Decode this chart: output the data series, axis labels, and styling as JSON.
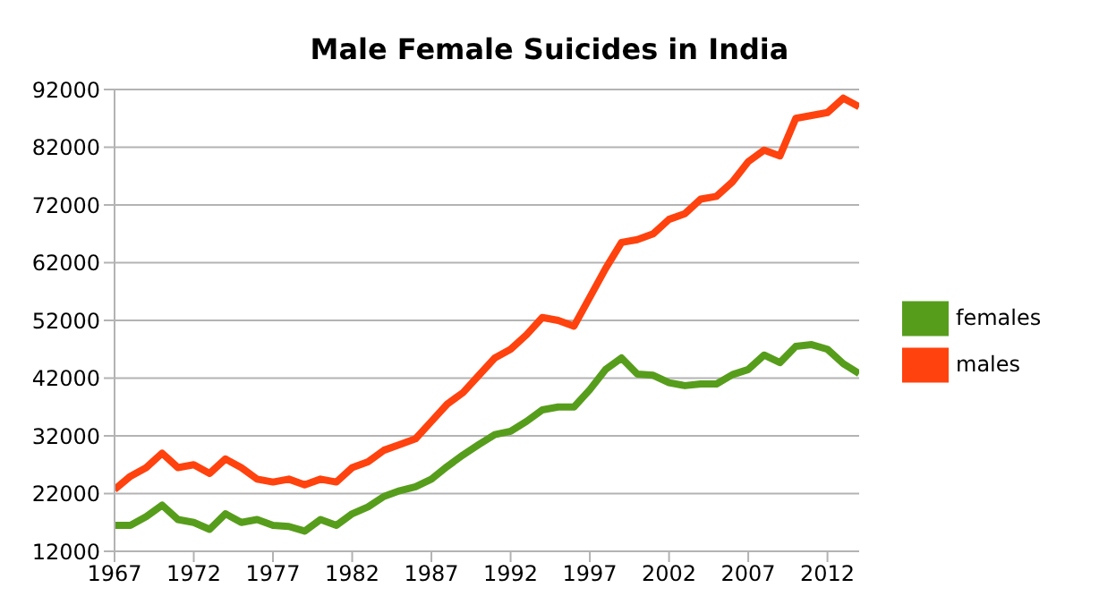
{
  "chart_data": {
    "type": "line",
    "title": "Male Female Suicides in India",
    "x": [
      1967,
      1968,
      1969,
      1970,
      1971,
      1972,
      1973,
      1974,
      1975,
      1976,
      1977,
      1978,
      1979,
      1980,
      1981,
      1982,
      1983,
      1984,
      1985,
      1986,
      1987,
      1988,
      1989,
      1990,
      1991,
      1992,
      1993,
      1994,
      1995,
      1996,
      1997,
      1998,
      1999,
      2000,
      2001,
      2002,
      2003,
      2004,
      2005,
      2006,
      2007,
      2008,
      2009,
      2010,
      2011,
      2012,
      2013,
      2014
    ],
    "series": [
      {
        "name": "males",
        "color": "#ff420e",
        "values": [
          22700,
          25000,
          26500,
          29000,
          26500,
          27000,
          25500,
          28000,
          26500,
          24500,
          24000,
          24500,
          23500,
          24500,
          24000,
          26500,
          27500,
          29500,
          30500,
          31500,
          34500,
          37500,
          39500,
          42500,
          45500,
          47000,
          49500,
          52500,
          52000,
          51000,
          56000,
          61000,
          65500,
          66000,
          67000,
          69500,
          70500,
          73000,
          73500,
          76000,
          79500,
          81500,
          80500,
          87000,
          87500,
          88000,
          90500,
          89000
        ]
      },
      {
        "name": "females",
        "color": "#579d1c",
        "values": [
          16500,
          16500,
          18000,
          20000,
          17500,
          17000,
          15800,
          18500,
          17000,
          17500,
          16500,
          16300,
          15500,
          17500,
          16500,
          18500,
          19700,
          21500,
          22500,
          23200,
          24500,
          26700,
          28700,
          30500,
          32200,
          32800,
          34500,
          36500,
          37000,
          37000,
          40000,
          43500,
          45500,
          42700,
          42500,
          41200,
          40700,
          41000,
          41000,
          42600,
          43500,
          46000,
          44700,
          47500,
          47800,
          47000,
          44500,
          42800
        ]
      }
    ],
    "xlim": [
      1967,
      2014
    ],
    "xticks": [
      1967,
      1972,
      1977,
      1982,
      1987,
      1992,
      1997,
      2002,
      2007,
      2012
    ],
    "ylim": [
      12000,
      92000
    ],
    "yticks": [
      12000,
      22000,
      32000,
      42000,
      52000,
      62000,
      72000,
      82000,
      92000
    ],
    "grid": "y",
    "legend": "right",
    "marker": "none",
    "line_style": "solid"
  }
}
